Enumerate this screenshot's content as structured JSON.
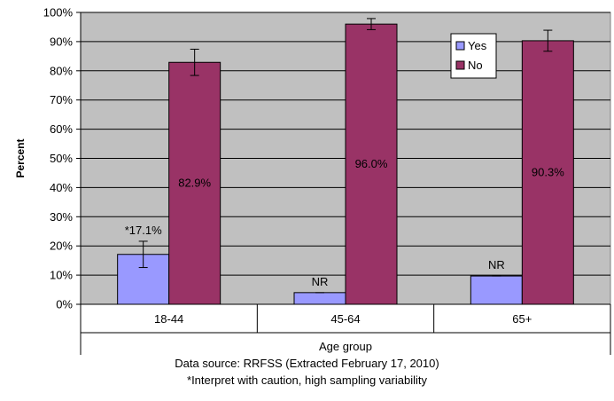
{
  "chart_data": {
    "type": "bar",
    "categories": [
      "18-44",
      "45-64",
      "65+"
    ],
    "series": [
      {
        "name": "Yes",
        "color": "#9999ff",
        "values": [
          17.1,
          4.0,
          9.7
        ],
        "error_low": [
          12.6,
          4.0,
          9.7
        ],
        "error_high": [
          21.6,
          4.0,
          9.7
        ],
        "labels": [
          "*17.1%",
          "NR",
          "NR"
        ]
      },
      {
        "name": "No",
        "color": "#993366",
        "values": [
          82.9,
          96.0,
          90.3
        ],
        "error_low": [
          78.4,
          94.1,
          86.7
        ],
        "error_high": [
          87.4,
          97.9,
          93.9
        ],
        "labels": [
          "82.9%",
          "96.0%",
          "90.3%"
        ]
      }
    ],
    "ylabel": "Percent",
    "xlabel": "Age group",
    "ylim": [
      0,
      100
    ],
    "ytick_labels": [
      "0%",
      "10%",
      "20%",
      "30%",
      "40%",
      "50%",
      "60%",
      "70%",
      "80%",
      "90%",
      "100%"
    ],
    "plot_background": "#c0c0c0",
    "grid": true,
    "legend_position": "top-right"
  },
  "notes": {
    "source": "Data source: RRFSS (Extracted February 17, 2010)",
    "caution": "*Interpret with caution, high sampling variability"
  }
}
